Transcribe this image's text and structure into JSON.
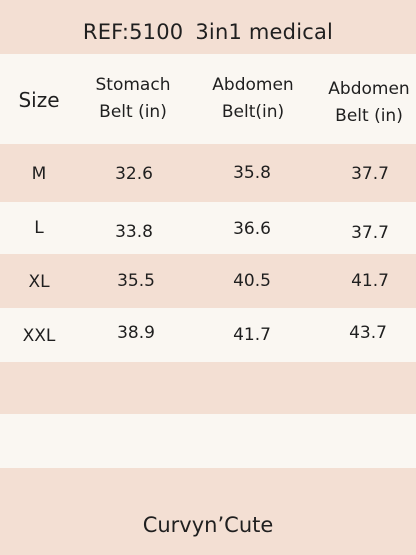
{
  "title": {
    "ref": "REF:5100",
    "product": "3in1 medical"
  },
  "table": {
    "headers": {
      "size": "Size",
      "stomach_line1": "Stomach",
      "stomach_line2": "Belt (in)",
      "abdomen1_line1": "Abdomen",
      "abdomen1_line2": "Belt(in)",
      "abdomen2_line1": "Abdomen",
      "abdomen2_line2": "Belt (in)"
    },
    "rows": [
      {
        "size": "M",
        "stomach": "32.6",
        "abdomen1": "35.8",
        "abdomen2": "37.7"
      },
      {
        "size": "L",
        "stomach": "33.8",
        "abdomen1": "36.6",
        "abdomen2": "37.7"
      },
      {
        "size": "XL",
        "stomach": "35.5",
        "abdomen1": "40.5",
        "abdomen2": "41.7"
      },
      {
        "size": "XXL",
        "stomach": "38.9",
        "abdomen1": "41.7",
        "abdomen2": "43.7"
      }
    ]
  },
  "footer": {
    "brand": "Curvyn’Cute"
  },
  "colors": {
    "pink_band": "#f3dfd3",
    "cream_band": "#faf7f2",
    "text": "#1f1f1f"
  }
}
